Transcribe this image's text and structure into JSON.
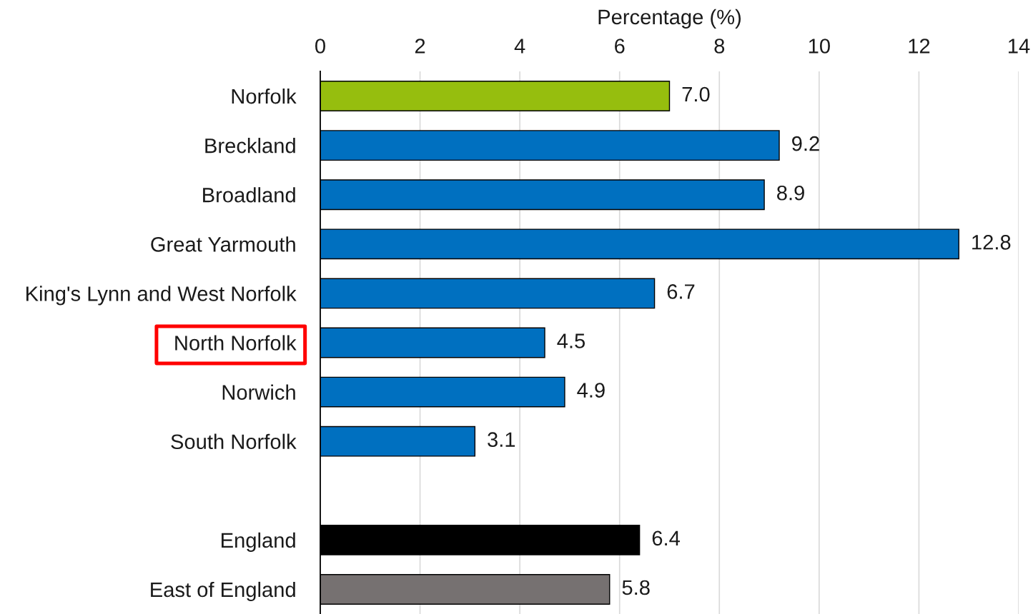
{
  "chart_data": {
    "type": "bar",
    "orientation": "horizontal",
    "xlabel": "Percentage (%)",
    "categories": [
      "Norfolk",
      "Breckland",
      "Broadland",
      "Great Yarmouth",
      "King's Lynn and West Norfolk",
      "North Norfolk",
      "Norwich",
      "South Norfolk",
      null,
      "England",
      "East of England"
    ],
    "values": [
      7.0,
      9.2,
      8.9,
      12.8,
      6.7,
      4.5,
      4.9,
      3.1,
      null,
      6.4,
      5.8
    ],
    "colors": [
      "#96be0e",
      "#0070c0",
      "#0070c0",
      "#0070c0",
      "#0070c0",
      "#0070c0",
      "#0070c0",
      "#0070c0",
      null,
      "#000000",
      "#767171"
    ],
    "value_labels": [
      "7.0",
      "9.2",
      "8.9",
      "12.8",
      "6.7",
      "4.5",
      "4.9",
      "3.1",
      null,
      "6.4",
      "5.8"
    ],
    "xlim": [
      0,
      14
    ],
    "xticks": [
      0,
      2,
      4,
      6,
      8,
      10,
      12,
      14
    ],
    "grid": "x"
  }
}
